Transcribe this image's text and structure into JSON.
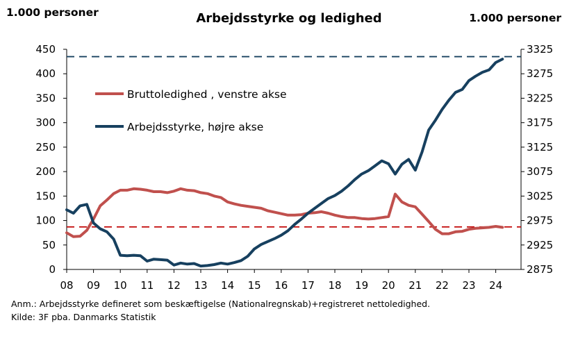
{
  "chart_data": {
    "type": "line",
    "title": "Arbejdsstyrke og ledighed",
    "left_unit": "1.000 personer",
    "right_unit": "1.000 personer",
    "x_ticks": [
      "08",
      "09",
      "10",
      "11",
      "12",
      "13",
      "14",
      "15",
      "16",
      "17",
      "18",
      "19",
      "20",
      "21",
      "22",
      "23",
      "24"
    ],
    "x_range": [
      2008,
      2024.9
    ],
    "y_left": {
      "range": [
        0,
        450
      ],
      "ticks": [
        0,
        50,
        100,
        150,
        200,
        250,
        300,
        350,
        400,
        450
      ]
    },
    "y_right": {
      "range": [
        2875,
        3325
      ],
      "ticks": [
        2875,
        2925,
        2975,
        3025,
        3075,
        3125,
        3175,
        3225,
        3275,
        3325
      ]
    },
    "legend_placement": "upper-left inside",
    "series": [
      {
        "name": "Bruttoledighed , venstre akse",
        "axis": "left",
        "color": "#c0504d",
        "points": [
          [
            2008.0,
            75
          ],
          [
            2008.25,
            67
          ],
          [
            2008.5,
            68
          ],
          [
            2008.75,
            80
          ],
          [
            2009.0,
            103
          ],
          [
            2009.25,
            130
          ],
          [
            2009.5,
            142
          ],
          [
            2009.75,
            155
          ],
          [
            2010.0,
            162
          ],
          [
            2010.25,
            162
          ],
          [
            2010.5,
            165
          ],
          [
            2010.75,
            164
          ],
          [
            2011.0,
            162
          ],
          [
            2011.25,
            159
          ],
          [
            2011.5,
            159
          ],
          [
            2011.75,
            157
          ],
          [
            2012.0,
            160
          ],
          [
            2012.25,
            165
          ],
          [
            2012.5,
            162
          ],
          [
            2012.75,
            161
          ],
          [
            2013.0,
            157
          ],
          [
            2013.25,
            155
          ],
          [
            2013.5,
            150
          ],
          [
            2013.75,
            147
          ],
          [
            2014.0,
            138
          ],
          [
            2014.25,
            134
          ],
          [
            2014.5,
            131
          ],
          [
            2014.75,
            129
          ],
          [
            2015.0,
            127
          ],
          [
            2015.25,
            125
          ],
          [
            2015.5,
            120
          ],
          [
            2015.75,
            117
          ],
          [
            2016.0,
            114
          ],
          [
            2016.25,
            111
          ],
          [
            2016.5,
            111
          ],
          [
            2016.75,
            112
          ],
          [
            2017.0,
            115
          ],
          [
            2017.25,
            116
          ],
          [
            2017.5,
            118
          ],
          [
            2017.75,
            115
          ],
          [
            2018.0,
            111
          ],
          [
            2018.25,
            108
          ],
          [
            2018.5,
            106
          ],
          [
            2018.75,
            106
          ],
          [
            2019.0,
            104
          ],
          [
            2019.25,
            103
          ],
          [
            2019.5,
            104
          ],
          [
            2019.75,
            106
          ],
          [
            2020.0,
            108
          ],
          [
            2020.25,
            154
          ],
          [
            2020.5,
            138
          ],
          [
            2020.75,
            131
          ],
          [
            2021.0,
            128
          ],
          [
            2021.25,
            113
          ],
          [
            2021.5,
            98
          ],
          [
            2021.75,
            82
          ],
          [
            2022.0,
            73
          ],
          [
            2022.25,
            73
          ],
          [
            2022.5,
            77
          ],
          [
            2022.75,
            78
          ],
          [
            2023.0,
            82
          ],
          [
            2023.25,
            84
          ],
          [
            2023.5,
            85
          ],
          [
            2023.75,
            86
          ],
          [
            2024.0,
            88
          ],
          [
            2024.25,
            86
          ]
        ]
      },
      {
        "name": "Arbejdsstyrke, højre akse",
        "axis": "right",
        "color": "#17405f",
        "points": [
          [
            2008.0,
            2997
          ],
          [
            2008.25,
            2990
          ],
          [
            2008.5,
            3005
          ],
          [
            2008.75,
            3008
          ],
          [
            2009.0,
            2970
          ],
          [
            2009.25,
            2958
          ],
          [
            2009.5,
            2952
          ],
          [
            2009.75,
            2937
          ],
          [
            2010.0,
            2904
          ],
          [
            2010.25,
            2903
          ],
          [
            2010.5,
            2904
          ],
          [
            2010.75,
            2903
          ],
          [
            2011.0,
            2892
          ],
          [
            2011.25,
            2896
          ],
          [
            2011.5,
            2895
          ],
          [
            2011.75,
            2894
          ],
          [
            2012.0,
            2884
          ],
          [
            2012.25,
            2888
          ],
          [
            2012.5,
            2886
          ],
          [
            2012.75,
            2887
          ],
          [
            2013.0,
            2882
          ],
          [
            2013.25,
            2883
          ],
          [
            2013.5,
            2885
          ],
          [
            2013.75,
            2888
          ],
          [
            2014.0,
            2886
          ],
          [
            2014.25,
            2889
          ],
          [
            2014.5,
            2893
          ],
          [
            2014.75,
            2902
          ],
          [
            2015.0,
            2917
          ],
          [
            2015.25,
            2926
          ],
          [
            2015.5,
            2932
          ],
          [
            2015.75,
            2938
          ],
          [
            2016.0,
            2945
          ],
          [
            2016.25,
            2954
          ],
          [
            2016.5,
            2967
          ],
          [
            2016.75,
            2978
          ],
          [
            2017.0,
            2990
          ],
          [
            2017.25,
            3000
          ],
          [
            2017.5,
            3010
          ],
          [
            2017.75,
            3020
          ],
          [
            2018.0,
            3026
          ],
          [
            2018.25,
            3035
          ],
          [
            2018.5,
            3046
          ],
          [
            2018.75,
            3059
          ],
          [
            2019.0,
            3070
          ],
          [
            2019.25,
            3077
          ],
          [
            2019.5,
            3087
          ],
          [
            2019.75,
            3097
          ],
          [
            2020.0,
            3091
          ],
          [
            2020.25,
            3070
          ],
          [
            2020.5,
            3090
          ],
          [
            2020.75,
            3100
          ],
          [
            2021.0,
            3078
          ],
          [
            2021.25,
            3115
          ],
          [
            2021.5,
            3160
          ],
          [
            2021.75,
            3180
          ],
          [
            2022.0,
            3202
          ],
          [
            2022.25,
            3221
          ],
          [
            2022.5,
            3237
          ],
          [
            2022.75,
            3243
          ],
          [
            2023.0,
            3261
          ],
          [
            2023.25,
            3270
          ],
          [
            2023.5,
            3278
          ],
          [
            2023.75,
            3283
          ],
          [
            2024.0,
            3298
          ],
          [
            2024.25,
            3305
          ]
        ]
      }
    ],
    "reference_lines": [
      {
        "axis": "right",
        "value": 3310,
        "color": "#17405f",
        "style": "dashed"
      },
      {
        "axis": "left",
        "value": 87,
        "color": "#c00000",
        "style": "dashed"
      }
    ]
  },
  "footnote": {
    "anm": "Anm.:  Arbejdsstyrke defineret som beskæftigelse (Nationalregnskab)+registreret nettoledighed.",
    "kilde": "Kilde: 3F pba. Danmarks Statistik"
  }
}
